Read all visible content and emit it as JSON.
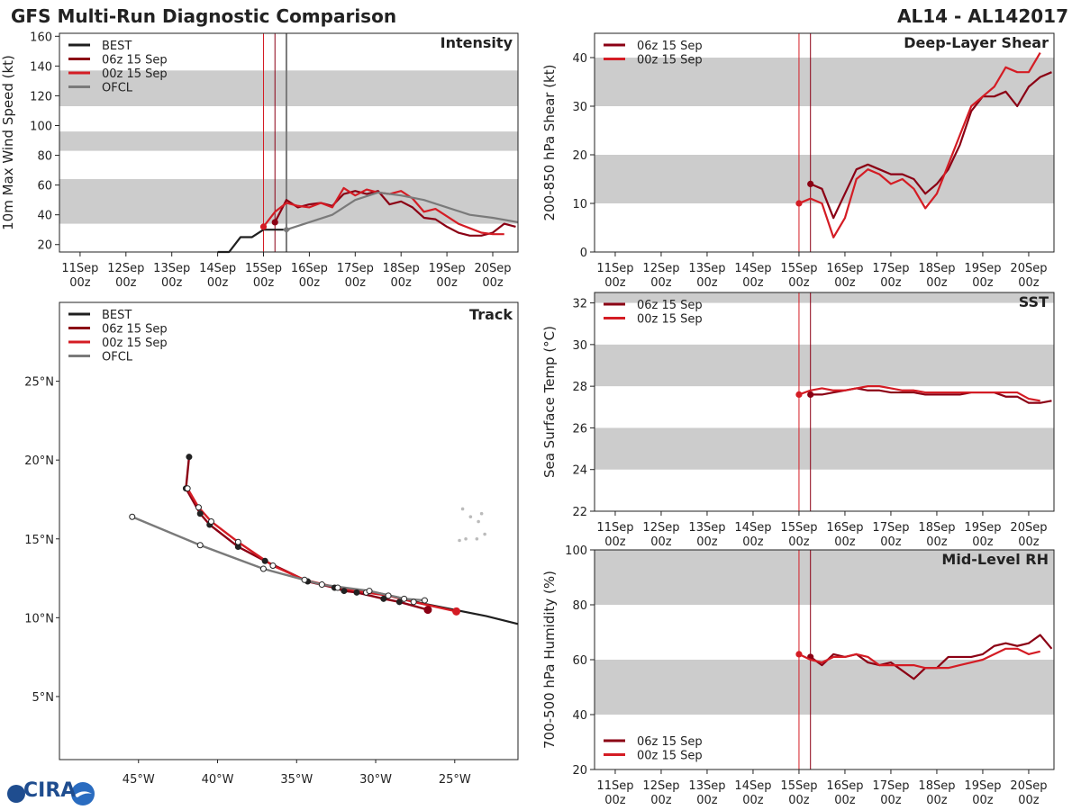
{
  "header": {
    "title": "GFS Multi-Run Diagnostic Comparison",
    "storm_id": "AL14 - AL142017"
  },
  "logo": {
    "text": "CIRA"
  },
  "colors": {
    "best": "#1f1f1f",
    "run06": "#8b0014",
    "run00": "#d41c24",
    "ofcl": "#7a7a7a",
    "band": "#cccccc"
  },
  "time_ticks": [
    {
      "line1": "11Sep",
      "line2": "00z",
      "day": 11
    },
    {
      "line1": "12Sep",
      "line2": "00z",
      "day": 12
    },
    {
      "line1": "13Sep",
      "line2": "00z",
      "day": 13
    },
    {
      "line1": "14Sep",
      "line2": "00z",
      "day": 14
    },
    {
      "line1": "15Sep",
      "line2": "00z",
      "day": 15
    },
    {
      "line1": "16Sep",
      "line2": "00z",
      "day": 16
    },
    {
      "line1": "17Sep",
      "line2": "00z",
      "day": 17
    },
    {
      "line1": "18Sep",
      "line2": "00z",
      "day": 18
    },
    {
      "line1": "19Sep",
      "line2": "00z",
      "day": 19
    },
    {
      "line1": "20Sep",
      "line2": "00z",
      "day": 20
    }
  ],
  "chart_data": [
    {
      "id": "intensity",
      "type": "line",
      "title": "Intensity",
      "xlabel": "",
      "ylabel": "10m Max Wind Speed (kt)",
      "xlim": [
        10.55,
        20.55
      ],
      "ylim": [
        15,
        162
      ],
      "yticks": [
        "20",
        "40",
        "60",
        "80",
        "100",
        "120",
        "140",
        "160"
      ],
      "bands": [
        [
          34,
          64
        ],
        [
          83,
          96
        ],
        [
          113,
          137
        ]
      ],
      "vlines": [
        {
          "day": 15.0,
          "series": "run00"
        },
        {
          "day": 15.25,
          "series": "run06"
        },
        {
          "day": 15.5,
          "series": "ofcl"
        }
      ],
      "legend": [
        "BEST",
        "06z 15 Sep",
        "00z 15 Sep",
        "OFCL"
      ],
      "series": [
        {
          "name": "BEST",
          "key": "best",
          "x": [
            14.0,
            14.25,
            14.5,
            14.75,
            15.0,
            15.25,
            15.5
          ],
          "y": [
            15,
            15,
            25,
            25,
            30,
            30,
            30
          ],
          "marker_end": false
        },
        {
          "name": "06z 15 Sep",
          "key": "run06",
          "x": [
            15.25,
            15.5,
            15.75,
            16.0,
            16.25,
            16.5,
            16.75,
            17.0,
            17.25,
            17.5,
            17.75,
            18.0,
            18.25,
            18.5,
            18.75,
            19.0,
            19.25,
            19.5,
            19.75,
            20.0,
            20.25,
            20.5
          ],
          "y": [
            35,
            50,
            45,
            47,
            48,
            46,
            54,
            56,
            54,
            56,
            47,
            49,
            45,
            38,
            37,
            32,
            28,
            26,
            26,
            28,
            34,
            32
          ],
          "marker_start": true
        },
        {
          "name": "00z 15 Sep",
          "key": "run00",
          "x": [
            15.0,
            15.25,
            15.5,
            15.75,
            16.0,
            16.25,
            16.5,
            16.75,
            17.0,
            17.25,
            17.5,
            17.75,
            18.0,
            18.25,
            18.5,
            18.75,
            19.0,
            19.25,
            19.5,
            19.75,
            20.0,
            20.25
          ],
          "y": [
            32,
            42,
            48,
            46,
            45,
            48,
            45,
            58,
            53,
            57,
            55,
            54,
            56,
            51,
            42,
            44,
            39,
            34,
            31,
            28,
            27,
            27
          ],
          "marker_start": true
        },
        {
          "name": "OFCL",
          "key": "ofcl",
          "x": [
            15.5,
            16.0,
            16.5,
            17.0,
            17.5,
            18.0,
            18.5,
            19.0,
            19.5,
            20.0,
            20.55
          ],
          "y": [
            30,
            35,
            40,
            50,
            55,
            53,
            50,
            45,
            40,
            38,
            35
          ],
          "marker_start": true
        }
      ]
    },
    {
      "id": "shear",
      "type": "line",
      "title": "Deep-Layer Shear",
      "xlabel": "",
      "ylabel": "200-850 hPa Shear (kt)",
      "xlim": [
        10.55,
        20.55
      ],
      "ylim": [
        0,
        45
      ],
      "yticks": [
        "0",
        "10",
        "20",
        "30",
        "40"
      ],
      "bands": [
        [
          10,
          20
        ],
        [
          30,
          40
        ]
      ],
      "vlines": [
        {
          "day": 15.0,
          "series": "run00"
        },
        {
          "day": 15.25,
          "series": "run06"
        }
      ],
      "legend": [
        "06z 15 Sep",
        "00z 15 Sep"
      ],
      "series": [
        {
          "name": "06z 15 Sep",
          "key": "run06",
          "x": [
            15.25,
            15.5,
            15.75,
            16.0,
            16.25,
            16.5,
            16.75,
            17.0,
            17.25,
            17.5,
            17.75,
            18.0,
            18.25,
            18.5,
            18.75,
            19.0,
            19.25,
            19.5,
            19.75,
            20.0,
            20.25,
            20.5
          ],
          "y": [
            14,
            13,
            7,
            12,
            17,
            18,
            17,
            16,
            16,
            15,
            12,
            14,
            17,
            22,
            29,
            32,
            32,
            33,
            30,
            34,
            36,
            37
          ],
          "marker_start": true
        },
        {
          "name": "00z 15 Sep",
          "key": "run00",
          "x": [
            15.0,
            15.25,
            15.5,
            15.75,
            16.0,
            16.25,
            16.5,
            16.75,
            17.0,
            17.25,
            17.5,
            17.75,
            18.0,
            18.25,
            18.5,
            18.75,
            19.0,
            19.25,
            19.5,
            19.75,
            20.0,
            20.25
          ],
          "y": [
            10,
            11,
            10,
            3,
            7,
            15,
            17,
            16,
            14,
            15,
            13,
            9,
            12,
            18,
            24,
            30,
            32,
            34,
            38,
            37,
            37,
            41
          ],
          "marker_start": true
        }
      ]
    },
    {
      "id": "sst",
      "type": "line",
      "title": "SST",
      "xlabel": "",
      "ylabel": "Sea Surface Temp (°C)",
      "xlim": [
        10.55,
        20.55
      ],
      "ylim": [
        22,
        32.5
      ],
      "yticks": [
        "22",
        "24",
        "26",
        "28",
        "30",
        "32"
      ],
      "bands": [
        [
          24,
          26
        ],
        [
          28,
          30
        ],
        [
          32,
          32.5
        ]
      ],
      "vlines": [
        {
          "day": 15.0,
          "series": "run00"
        },
        {
          "day": 15.25,
          "series": "run06"
        }
      ],
      "legend": [
        "06z 15 Sep",
        "00z 15 Sep"
      ],
      "series": [
        {
          "name": "06z 15 Sep",
          "key": "run06",
          "x": [
            15.25,
            15.5,
            15.75,
            16.0,
            16.25,
            16.5,
            16.75,
            17.0,
            17.25,
            17.5,
            17.75,
            18.0,
            18.25,
            18.5,
            18.75,
            19.0,
            19.25,
            19.5,
            19.75,
            20.0,
            20.25,
            20.5
          ],
          "y": [
            27.6,
            27.6,
            27.7,
            27.8,
            27.9,
            27.8,
            27.8,
            27.7,
            27.7,
            27.7,
            27.6,
            27.6,
            27.6,
            27.6,
            27.7,
            27.7,
            27.7,
            27.5,
            27.5,
            27.2,
            27.2,
            27.3
          ],
          "marker_start": true
        },
        {
          "name": "00z 15 Sep",
          "key": "run00",
          "x": [
            15.0,
            15.25,
            15.5,
            15.75,
            16.0,
            16.25,
            16.5,
            16.75,
            17.0,
            17.25,
            17.5,
            17.75,
            18.0,
            18.25,
            18.5,
            18.75,
            19.0,
            19.25,
            19.5,
            19.75,
            20.0,
            20.25
          ],
          "y": [
            27.6,
            27.8,
            27.9,
            27.8,
            27.8,
            27.9,
            28.0,
            28.0,
            27.9,
            27.8,
            27.8,
            27.7,
            27.7,
            27.7,
            27.7,
            27.7,
            27.7,
            27.7,
            27.7,
            27.7,
            27.4,
            27.3
          ],
          "marker_start": true
        }
      ]
    },
    {
      "id": "rh",
      "type": "line",
      "title": "Mid-Level RH",
      "xlabel": "",
      "ylabel": "700-500 hPa Humidity (%)",
      "xlim": [
        10.55,
        20.55
      ],
      "ylim": [
        20,
        100
      ],
      "yticks": [
        "20",
        "40",
        "60",
        "80",
        "100"
      ],
      "bands": [
        [
          40,
          60
        ],
        [
          80,
          100
        ]
      ],
      "vlines": [
        {
          "day": 15.0,
          "series": "run00"
        },
        {
          "day": 15.25,
          "series": "run06"
        }
      ],
      "legend": [
        "06z 15 Sep",
        "00z 15 Sep"
      ],
      "series": [
        {
          "name": "06z 15 Sep",
          "key": "run06",
          "x": [
            15.25,
            15.5,
            15.75,
            16.0,
            16.25,
            16.5,
            16.75,
            17.0,
            17.25,
            17.5,
            17.75,
            18.0,
            18.25,
            18.5,
            18.75,
            19.0,
            19.25,
            19.5,
            19.75,
            20.0,
            20.25,
            20.5
          ],
          "y": [
            61,
            58,
            62,
            61,
            62,
            59,
            58,
            59,
            56,
            53,
            57,
            57,
            61,
            61,
            61,
            62,
            65,
            66,
            65,
            66,
            69,
            64
          ],
          "marker_start": true
        },
        {
          "name": "00z 15 Sep",
          "key": "run00",
          "x": [
            15.0,
            15.25,
            15.5,
            15.75,
            16.0,
            16.25,
            16.5,
            16.75,
            17.0,
            17.25,
            17.5,
            17.75,
            18.0,
            18.25,
            18.5,
            18.75,
            19.0,
            19.25,
            19.5,
            19.75,
            20.0,
            20.25
          ],
          "y": [
            62,
            60,
            59,
            61,
            61,
            62,
            61,
            58,
            58,
            58,
            58,
            57,
            57,
            57,
            58,
            59,
            60,
            62,
            64,
            64,
            62,
            63
          ],
          "marker_start": true
        }
      ]
    },
    {
      "id": "track",
      "type": "line",
      "title": "Track",
      "xlabel": "",
      "ylabel": "",
      "xlim": [
        -50,
        -21
      ],
      "ylim": [
        1,
        30
      ],
      "xticks": [
        {
          "lon": -45,
          "label": "45°W"
        },
        {
          "lon": -40,
          "label": "40°W"
        },
        {
          "lon": -35,
          "label": "35°W"
        },
        {
          "lon": -30,
          "label": "30°W"
        },
        {
          "lon": -25,
          "label": "25°W"
        }
      ],
      "yticks": [
        {
          "lat": 5,
          "label": "5°N"
        },
        {
          "lat": 10,
          "label": "10°N"
        },
        {
          "lat": 15,
          "label": "15°N"
        },
        {
          "lat": 20,
          "label": "20°N"
        },
        {
          "lat": 25,
          "label": "25°N"
        }
      ],
      "legend": [
        "BEST",
        "06z 15 Sep",
        "00z 15 Sep",
        "OFCL"
      ],
      "series": [
        {
          "name": "BEST",
          "key": "best",
          "lon": [
            -21,
            -23,
            -25,
            -27,
            -28.6,
            -30,
            -31.2
          ],
          "lat": [
            9.6,
            10.1,
            10.5,
            10.9,
            11.3,
            11.6,
            11.7
          ],
          "marker_start": false
        },
        {
          "name": "06z 15 Sep",
          "key": "run06",
          "lon": [
            -26.7,
            -28.5,
            -29.5,
            -31.2,
            -32.0,
            -32.6,
            -34.3,
            -37.0,
            -38.7,
            -40.5,
            -41.1,
            -42.0,
            -41.8
          ],
          "lat": [
            10.5,
            11.0,
            11.2,
            11.6,
            11.7,
            11.9,
            12.3,
            13.6,
            14.5,
            15.9,
            16.6,
            18.2,
            20.2
          ],
          "marker_start": true,
          "dots": "filled"
        },
        {
          "name": "00z 15 Sep",
          "key": "run00",
          "lon": [
            -24.9,
            -27.6,
            -29.2,
            -30.6,
            -32.4,
            -34.5,
            -36.5,
            -38.7,
            -40.4,
            -41.2,
            -41.9
          ],
          "lat": [
            10.4,
            11.0,
            11.4,
            11.6,
            11.9,
            12.4,
            13.3,
            14.8,
            16.1,
            17.0,
            18.2
          ],
          "marker_start": true,
          "dots": "open"
        },
        {
          "name": "OFCL",
          "key": "ofcl",
          "lon": [
            -26.9,
            -28.2,
            -30.4,
            -33.4,
            -37.1,
            -41.1,
            -45.4
          ],
          "lat": [
            11.1,
            11.2,
            11.7,
            12.1,
            13.1,
            14.6,
            16.4
          ],
          "marker_start": false,
          "dots": "open"
        }
      ],
      "islands": [
        {
          "lon": -24.5,
          "lat": 16.9
        },
        {
          "lon": -24.0,
          "lat": 16.4
        },
        {
          "lon": -23.5,
          "lat": 16.1
        },
        {
          "lon": -23.3,
          "lat": 16.6
        },
        {
          "lon": -24.3,
          "lat": 15.0
        },
        {
          "lon": -23.6,
          "lat": 15.0
        },
        {
          "lon": -23.1,
          "lat": 15.3
        },
        {
          "lon": -24.7,
          "lat": 14.9
        }
      ]
    }
  ]
}
